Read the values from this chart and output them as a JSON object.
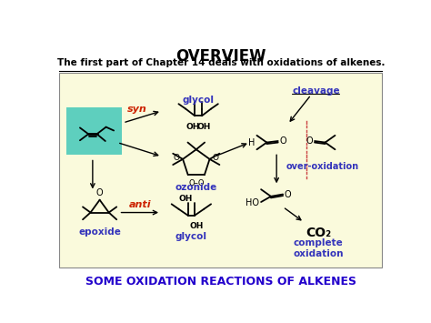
{
  "title": "OVERVIEW",
  "subtitle": "The first part of Chapter 14 deals with oxidations of alkenes.",
  "footer": "SOME OXIDATION REACTIONS OF ALKENES",
  "title_color": "#000000",
  "subtitle_color": "#000000",
  "footer_color": "#2200CC",
  "blue_label_color": "#3333BB",
  "red_label_color": "#CC2200",
  "teal_bg": "#5ECFBE",
  "box_bg": "#FAFADC",
  "labels": {
    "glycol_top": "glycol",
    "cleavage": "cleavage",
    "ozonide": "ozonide",
    "over_oxidation": "over-oxidation",
    "epoxide": "epoxide",
    "glycol_bottom": "glycol",
    "complete_oxidation": "complete\noxidation",
    "syn": "syn",
    "anti": "anti",
    "CO2": "CO₂",
    "H": "H",
    "HO": "HO",
    "O": "O",
    "OH": "OH",
    "OHOH": "OHOH",
    "OO": "O–O"
  }
}
